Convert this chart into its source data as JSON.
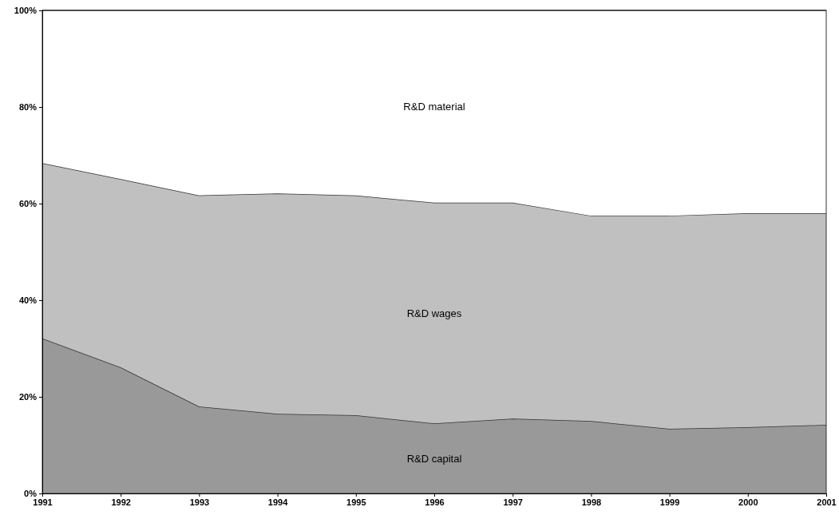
{
  "chart_data": {
    "type": "area",
    "stacked": true,
    "categories": [
      "1991",
      "1992",
      "1993",
      "1994",
      "1995",
      "1996",
      "1997",
      "1998",
      "1999",
      "2000",
      "2001"
    ],
    "ylim": [
      0,
      100
    ],
    "yticks": [
      {
        "value": 0,
        "label": "0%"
      },
      {
        "value": 20,
        "label": "20%"
      },
      {
        "value": 40,
        "label": "40%"
      },
      {
        "value": 60,
        "label": "60%"
      },
      {
        "value": 80,
        "label": "80%"
      },
      {
        "value": 100,
        "label": "100%"
      }
    ],
    "series": [
      {
        "name": "R&D capital",
        "color": "#999999",
        "values": [
          32.1,
          26.1,
          18.0,
          16.5,
          16.2,
          14.5,
          15.5,
          15.0,
          13.4,
          13.7,
          14.2
        ]
      },
      {
        "name": "R&D wages",
        "color": "#c0c0c0",
        "values": [
          36.3,
          39.0,
          43.7,
          45.6,
          45.5,
          45.7,
          44.7,
          42.5,
          44.1,
          44.3,
          43.8
        ]
      },
      {
        "name": "R&D material",
        "color": "#ffffff",
        "values": [
          31.6,
          34.9,
          38.3,
          37.9,
          38.3,
          39.8,
          39.8,
          42.5,
          42.5,
          42.0,
          42.0
        ]
      }
    ]
  }
}
